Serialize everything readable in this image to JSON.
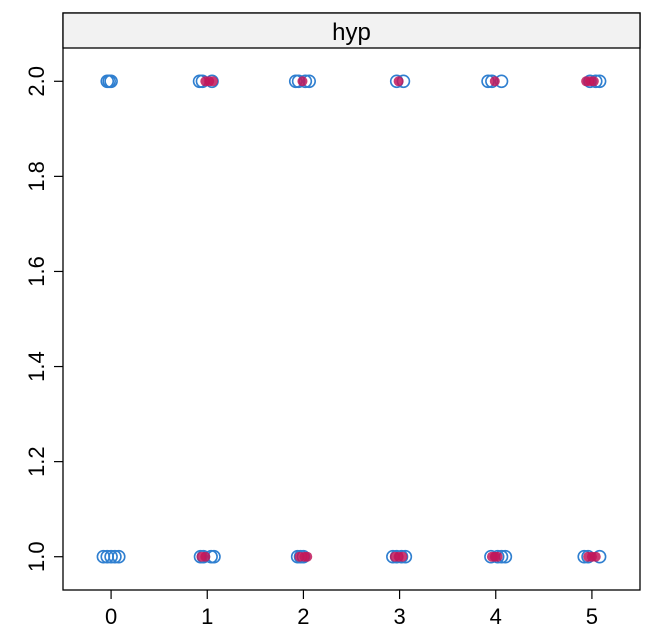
{
  "chart_data": {
    "type": "scatter",
    "panel_title": "hyp",
    "xlabel": "",
    "ylabel": "",
    "xlim": [
      -0.5,
      5.5
    ],
    "ylim": [
      0.93,
      2.07
    ],
    "x_ticks": [
      0,
      1,
      2,
      3,
      4,
      5
    ],
    "x_tick_labels": [
      "0",
      "1",
      "2",
      "3",
      "4",
      "5"
    ],
    "y_ticks": [
      1.0,
      1.2,
      1.4,
      1.6,
      1.8,
      2.0
    ],
    "y_tick_labels": [
      "1.0",
      "1.2",
      "1.4",
      "1.6",
      "1.8",
      "2.0"
    ],
    "grid": false,
    "series": [
      {
        "color": "#2f7fd0",
        "marker": "open-circle",
        "points": [
          {
            "x": -0.04,
            "y": 2.0
          },
          {
            "x": -0.02,
            "y": 2.0
          },
          {
            "x": 0.0,
            "y": 2.0
          },
          {
            "x": -0.08,
            "y": 1.0
          },
          {
            "x": -0.04,
            "y": 1.0
          },
          {
            "x": 0.0,
            "y": 1.0
          },
          {
            "x": 0.04,
            "y": 1.0
          },
          {
            "x": 0.08,
            "y": 1.0
          },
          {
            "x": 0.92,
            "y": 2.0
          },
          {
            "x": 0.95,
            "y": 2.0
          },
          {
            "x": 1.05,
            "y": 2.0
          },
          {
            "x": 0.93,
            "y": 1.0
          },
          {
            "x": 0.96,
            "y": 1.0
          },
          {
            "x": 1.04,
            "y": 1.0
          },
          {
            "x": 1.07,
            "y": 1.0
          },
          {
            "x": 1.92,
            "y": 2.0
          },
          {
            "x": 1.95,
            "y": 2.0
          },
          {
            "x": 2.02,
            "y": 2.0
          },
          {
            "x": 2.06,
            "y": 2.0
          },
          {
            "x": 1.94,
            "y": 1.0
          },
          {
            "x": 1.97,
            "y": 1.0
          },
          {
            "x": 2.0,
            "y": 1.0
          },
          {
            "x": 2.97,
            "y": 2.0
          },
          {
            "x": 3.04,
            "y": 2.0
          },
          {
            "x": 2.93,
            "y": 1.0
          },
          {
            "x": 2.97,
            "y": 1.0
          },
          {
            "x": 3.02,
            "y": 1.0
          },
          {
            "x": 3.06,
            "y": 1.0
          },
          {
            "x": 3.92,
            "y": 2.0
          },
          {
            "x": 3.96,
            "y": 2.0
          },
          {
            "x": 4.06,
            "y": 2.0
          },
          {
            "x": 3.95,
            "y": 1.0
          },
          {
            "x": 4.02,
            "y": 1.0
          },
          {
            "x": 4.06,
            "y": 1.0
          },
          {
            "x": 4.1,
            "y": 1.0
          },
          {
            "x": 4.98,
            "y": 2.0
          },
          {
            "x": 5.04,
            "y": 2.0
          },
          {
            "x": 5.08,
            "y": 2.0
          },
          {
            "x": 4.92,
            "y": 1.0
          },
          {
            "x": 4.96,
            "y": 1.0
          },
          {
            "x": 5.08,
            "y": 1.0
          }
        ]
      },
      {
        "color": "#c2185b",
        "marker": "filled-circle",
        "points": [
          {
            "x": 0.98,
            "y": 2.0
          },
          {
            "x": 1.02,
            "y": 2.0
          },
          {
            "x": 1.06,
            "y": 2.0
          },
          {
            "x": 0.94,
            "y": 1.0
          },
          {
            "x": 0.98,
            "y": 1.0
          },
          {
            "x": 1.99,
            "y": 2.0
          },
          {
            "x": 1.96,
            "y": 1.0
          },
          {
            "x": 2.01,
            "y": 1.0
          },
          {
            "x": 2.04,
            "y": 1.0
          },
          {
            "x": 2.99,
            "y": 2.0
          },
          {
            "x": 2.95,
            "y": 1.0
          },
          {
            "x": 2.99,
            "y": 1.0
          },
          {
            "x": 3.03,
            "y": 1.0
          },
          {
            "x": 3.99,
            "y": 2.0
          },
          {
            "x": 3.96,
            "y": 1.0
          },
          {
            "x": 3.99,
            "y": 1.0
          },
          {
            "x": 4.02,
            "y": 1.0
          },
          {
            "x": 4.94,
            "y": 2.0
          },
          {
            "x": 4.98,
            "y": 2.0
          },
          {
            "x": 5.02,
            "y": 2.0
          },
          {
            "x": 4.96,
            "y": 1.0
          },
          {
            "x": 5.0,
            "y": 1.0
          },
          {
            "x": 5.04,
            "y": 1.0
          }
        ]
      }
    ]
  }
}
